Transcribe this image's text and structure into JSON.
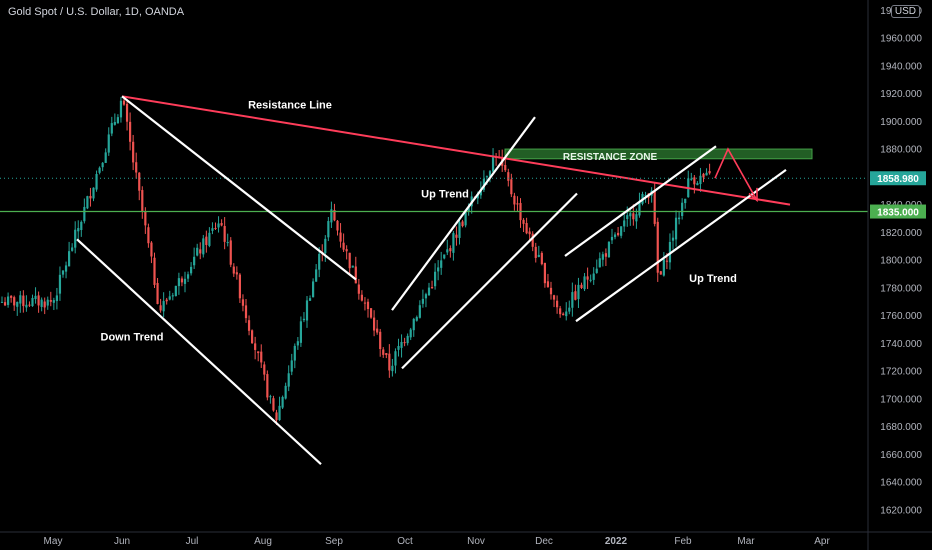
{
  "header": {
    "title": "Gold Spot / U.S. Dollar, 1D, OANDA",
    "currency": "USD"
  },
  "colors": {
    "background": "#000000",
    "up_candle": "#26a69a",
    "down_candle": "#ef5350",
    "trend_line": "#ffffff",
    "resistance_line": "#ff3d5a",
    "support_line": "#4caf50",
    "zone_fill": "#2e7d32",
    "arrow": "#ff3d5a",
    "axis_text": "#b2b5be"
  },
  "chart_data": {
    "type": "candlestick",
    "y_axis": {
      "range": [
        1605,
        1965
      ],
      "ticks": [
        "1620.000",
        "1640.000",
        "1660.000",
        "1680.000",
        "1700.000",
        "1720.000",
        "1740.000",
        "1760.000",
        "1780.000",
        "1800.000",
        "1820.000",
        "1840.000",
        "1860.000",
        "1880.000",
        "1900.000",
        "1920.000",
        "1940.000",
        "1960.000"
      ],
      "top_partial_label": "1980.000"
    },
    "x_axis": {
      "ticks": [
        "May",
        "Jun",
        "Jul",
        "Aug",
        "Sep",
        "Oct",
        "Nov",
        "Dec",
        "2022",
        "Feb",
        "Mar",
        "Apr"
      ]
    },
    "price_labels": [
      {
        "text": "1858.980",
        "value": 1858.98,
        "color": "#26a69a"
      },
      {
        "text": "1835.000",
        "value": 1835.0,
        "color": "#4caf50"
      }
    ],
    "annotations": [
      {
        "text": "Resistance Line",
        "value": 1912
      },
      {
        "text": "RESISTANCE ZONE",
        "value": 1875
      },
      {
        "text": "Up Trend",
        "value": 1848
      },
      {
        "text": "Down Trend",
        "value": 1745
      },
      {
        "text": "Up Trend",
        "value": 1787
      }
    ],
    "key_prices": [
      {
        "date": "2021-05-01",
        "approx": 1770
      },
      {
        "date": "2021-06-01",
        "approx": 1916
      },
      {
        "date": "2021-06-18",
        "approx": 1764
      },
      {
        "date": "2021-07-15",
        "approx": 1829
      },
      {
        "date": "2021-08-09",
        "approx": 1684
      },
      {
        "date": "2021-09-03",
        "approx": 1834
      },
      {
        "date": "2021-09-29",
        "approx": 1722
      },
      {
        "date": "2021-11-16",
        "approx": 1877
      },
      {
        "date": "2021-12-15",
        "approx": 1760
      },
      {
        "date": "2022-01-25",
        "approx": 1853
      },
      {
        "date": "2022-01-28",
        "approx": 1783
      },
      {
        "date": "2022-02-11",
        "approx": 1858.98
      }
    ]
  }
}
